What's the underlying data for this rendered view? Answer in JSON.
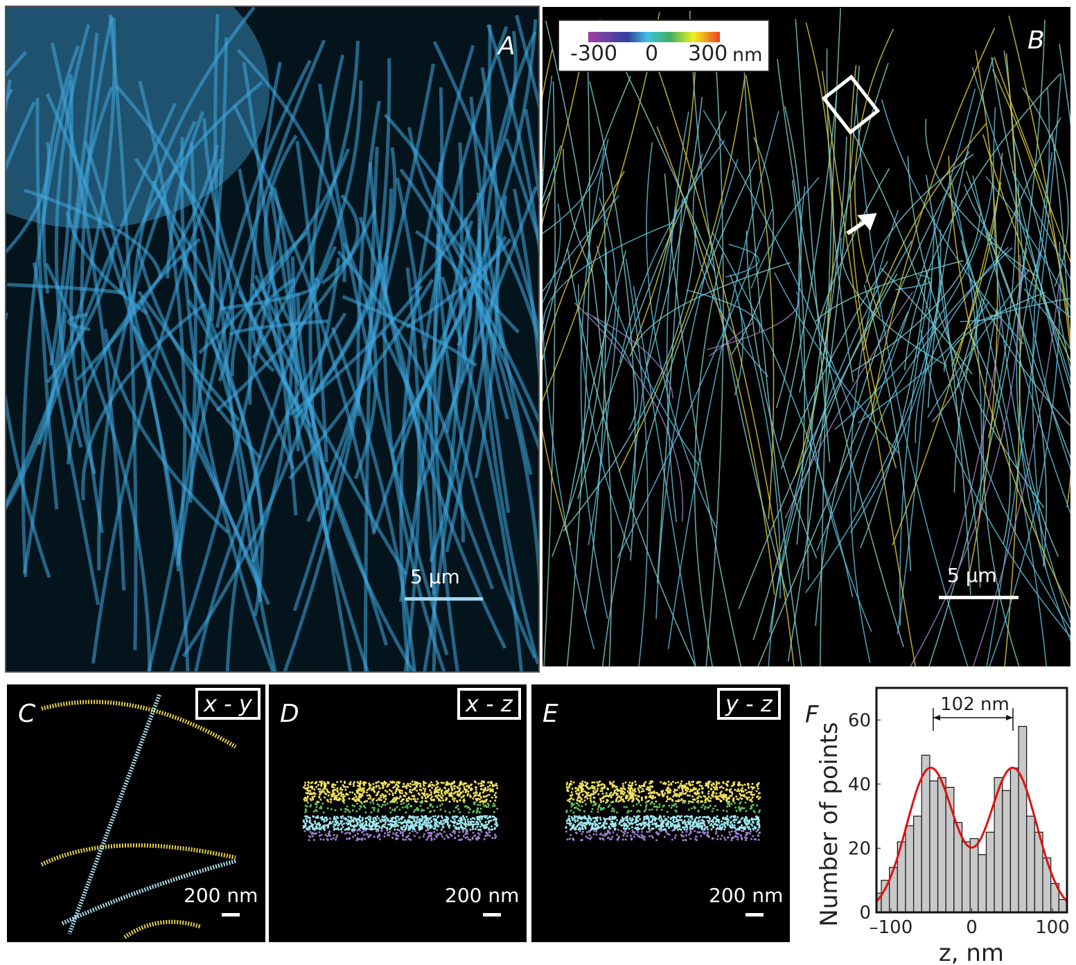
{
  "panels": {
    "A": {
      "label": "A",
      "scale": "5 µm",
      "color": "#3fa8e0"
    },
    "B": {
      "label": "B",
      "scale": "5 µm",
      "colorbar": {
        "ticks": [
          "-300",
          "0",
          "300"
        ],
        "unit": "nm"
      }
    },
    "C": {
      "label": "C",
      "view": "x - y",
      "scale": "200 nm"
    },
    "D": {
      "label": "D",
      "view": "x - z",
      "scale": "200 nm"
    },
    "E": {
      "label": "E",
      "view": "y - z",
      "scale": "200 nm"
    },
    "F": {
      "label": "F"
    }
  },
  "chart_data": {
    "type": "bar",
    "xlabel": "z, nm",
    "ylabel": "Number of points",
    "xlim": [
      -118,
      118
    ],
    "ylim": [
      0,
      70
    ],
    "xticks": [
      "-100",
      "0",
      "100"
    ],
    "yticks": [
      "0",
      "20",
      "40",
      "60"
    ],
    "bin_width": 10,
    "x": [
      -117,
      -107,
      -97,
      -87,
      -77,
      -67,
      -57,
      -47,
      -37,
      -27,
      -17,
      -7,
      3,
      13,
      23,
      33,
      43,
      53,
      63,
      73,
      83,
      93,
      103,
      113
    ],
    "values": [
      6,
      10,
      14,
      22,
      27,
      30,
      49,
      41,
      42,
      39,
      28,
      22,
      23,
      18,
      25,
      42,
      38,
      45,
      58,
      30,
      25,
      17,
      9,
      4
    ],
    "fit": {
      "type": "double-gaussian",
      "centers": [
        -51,
        51
      ],
      "amplitude": 45,
      "sigma": 29.5,
      "color": "#e01010"
    },
    "annotation": "102 nm",
    "bar_color": "#c8c8c8"
  }
}
